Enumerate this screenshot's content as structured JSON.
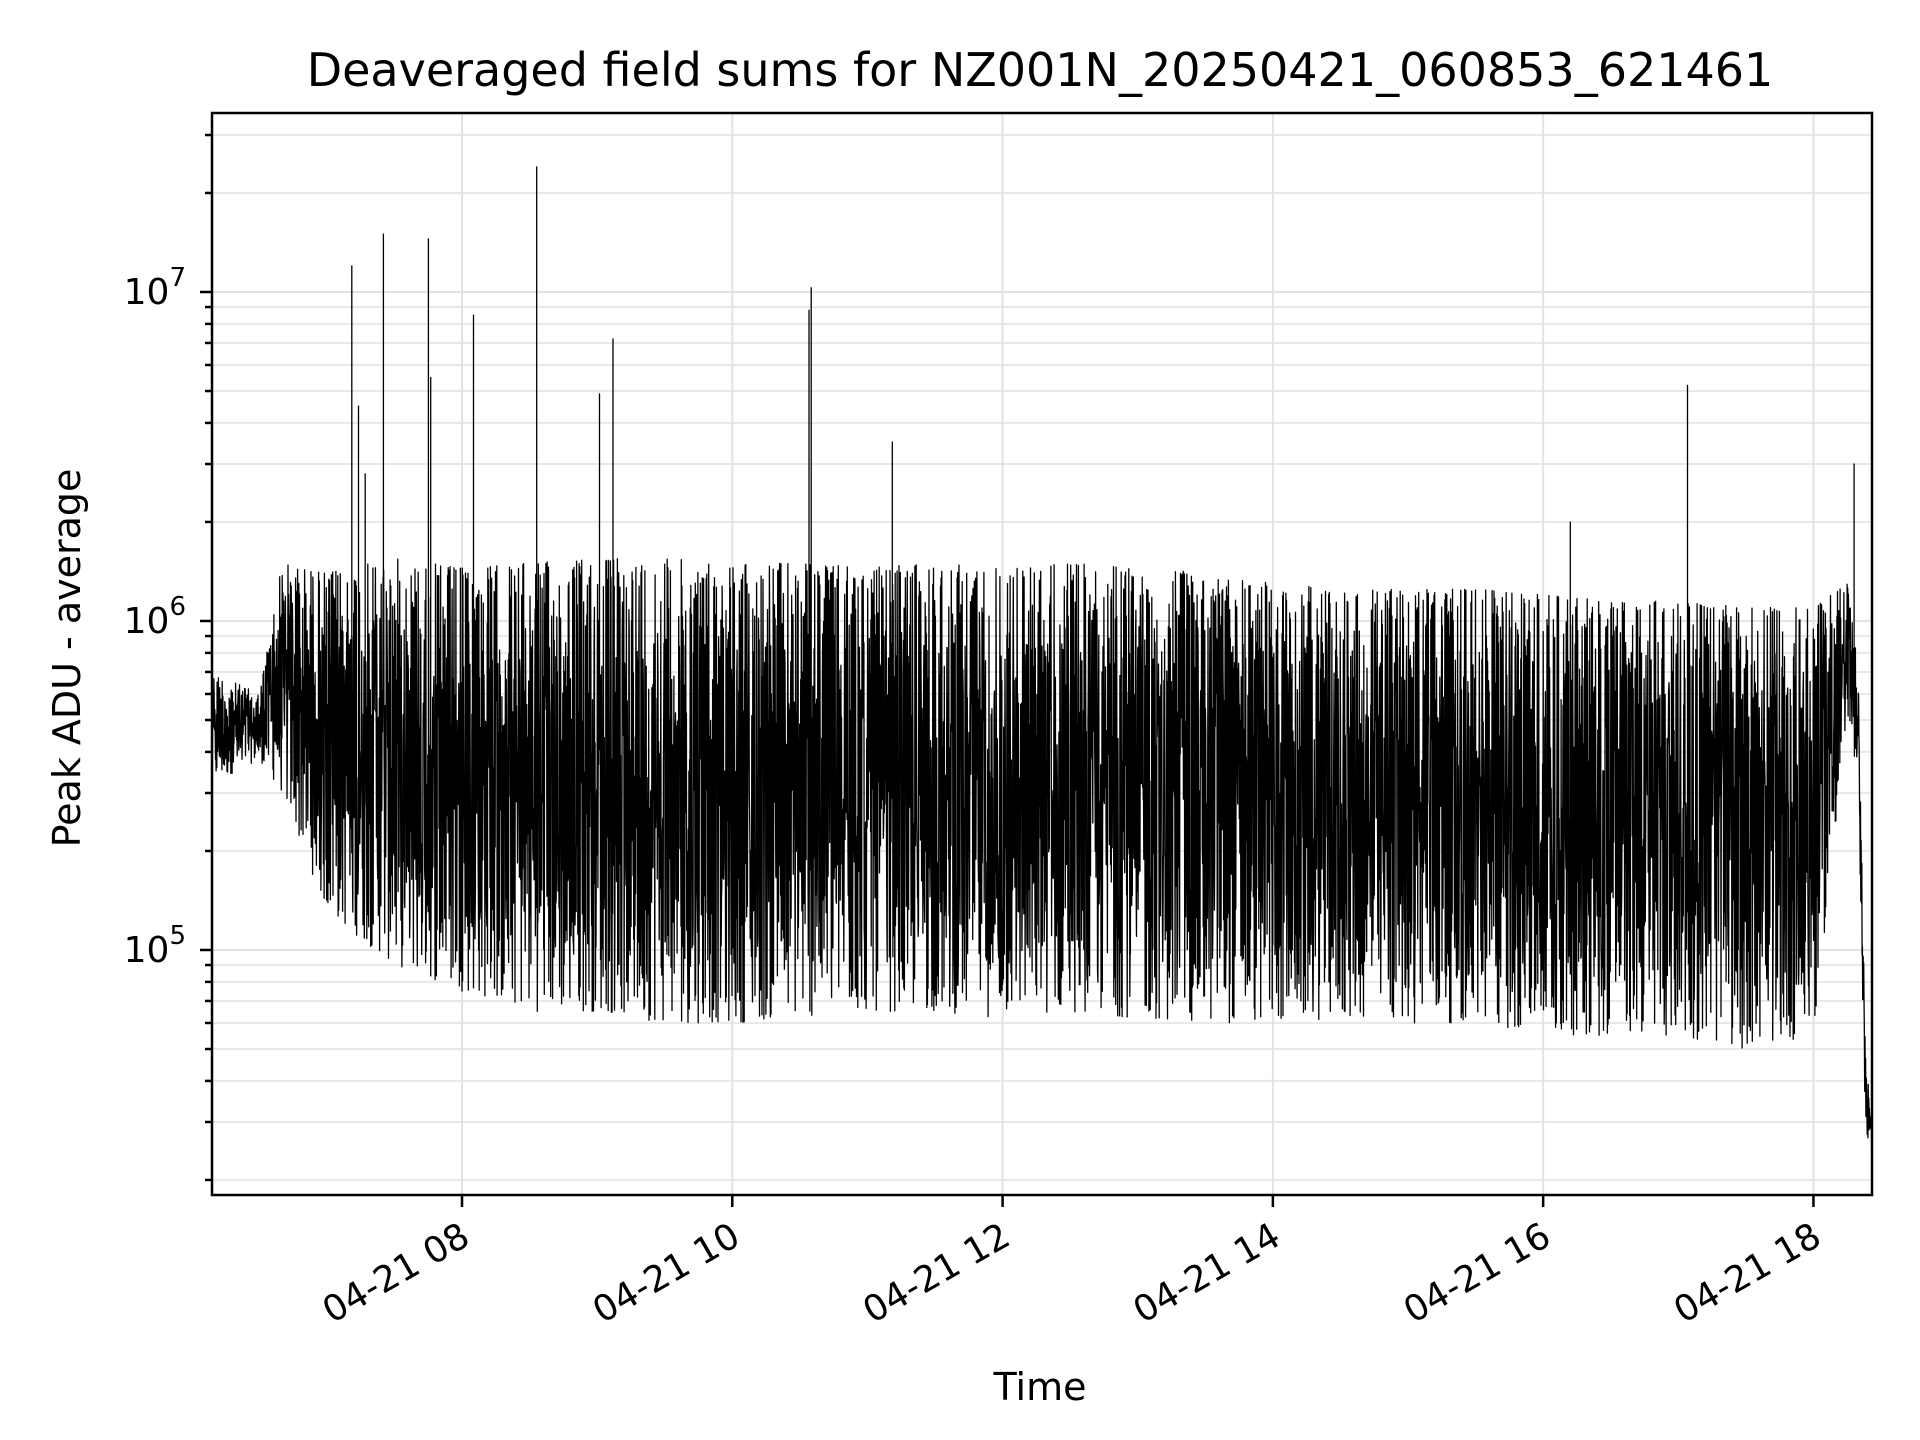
{
  "chart_data": {
    "type": "line",
    "title": "Deaveraged field sums for NZ001N_20250421_060853_621461",
    "xlabel": "Time",
    "ylabel": "Peak ADU - average",
    "y_scale": "log",
    "grid": true,
    "xlim": [
      "04-21 06:09",
      "04-21 18:26"
    ],
    "ylim": [
      18000,
      35000000
    ],
    "x_ticks": [
      "04-21 08",
      "04-21 10",
      "04-21 12",
      "04-21 14",
      "04-21 16",
      "04-21 18"
    ],
    "x_tick_hours": [
      8,
      10,
      12,
      14,
      16,
      18
    ],
    "y_ticks": [
      {
        "base": "10",
        "exp": "5",
        "value": 100000
      },
      {
        "base": "10",
        "exp": "6",
        "value": 1000000
      },
      {
        "base": "10",
        "exp": "7",
        "value": 10000000
      }
    ],
    "series": [
      {
        "color": "#000000",
        "envelope": [
          {
            "t": "06:09",
            "hi": 700000,
            "lo": 320000
          },
          {
            "t": "06:30",
            "hi": 600000,
            "lo": 380000
          },
          {
            "t": "06:40",
            "hi": 1500000,
            "lo": 300000
          },
          {
            "t": "07:00",
            "hi": 1400000,
            "lo": 130000
          },
          {
            "t": "07:30",
            "hi": 1550000,
            "lo": 90000
          },
          {
            "t": "08:00",
            "hi": 1450000,
            "lo": 75000
          },
          {
            "t": "08:30",
            "hi": 1500000,
            "lo": 65000
          },
          {
            "t": "09:00",
            "hi": 1550000,
            "lo": 65000
          },
          {
            "t": "09:30",
            "hi": 1550000,
            "lo": 60000
          },
          {
            "t": "10:00",
            "hi": 1500000,
            "lo": 60000
          },
          {
            "t": "10:30",
            "hi": 1500000,
            "lo": 62000
          },
          {
            "t": "11:00",
            "hi": 1450000,
            "lo": 65000
          },
          {
            "t": "11:30",
            "hi": 1500000,
            "lo": 65000
          },
          {
            "t": "12:00",
            "hi": 1450000,
            "lo": 62000
          },
          {
            "t": "12:30",
            "hi": 1500000,
            "lo": 65000
          },
          {
            "t": "13:00",
            "hi": 1450000,
            "lo": 62000
          },
          {
            "t": "13:30",
            "hi": 1400000,
            "lo": 60000
          },
          {
            "t": "14:00",
            "hi": 1300000,
            "lo": 60000
          },
          {
            "t": "14:30",
            "hi": 1250000,
            "lo": 62000
          },
          {
            "t": "15:00",
            "hi": 1250000,
            "lo": 60000
          },
          {
            "t": "15:30",
            "hi": 1250000,
            "lo": 60000
          },
          {
            "t": "16:00",
            "hi": 1200000,
            "lo": 55000
          },
          {
            "t": "16:30",
            "hi": 1150000,
            "lo": 55000
          },
          {
            "t": "17:00",
            "hi": 1150000,
            "lo": 55000
          },
          {
            "t": "17:30",
            "hi": 1100000,
            "lo": 50000
          },
          {
            "t": "18:00",
            "hi": 1100000,
            "lo": 55000
          },
          {
            "t": "18:15",
            "hi": 1300000,
            "lo": 500000
          },
          {
            "t": "18:20",
            "hi": 700000,
            "lo": 300000
          },
          {
            "t": "18:23",
            "hi": 50000,
            "lo": 30000
          },
          {
            "t": "18:26",
            "hi": 30000,
            "lo": 22000
          }
        ],
        "spikes": [
          {
            "t": "07:11",
            "value": 12000000
          },
          {
            "t": "07:14",
            "value": 4500000
          },
          {
            "t": "07:17",
            "value": 2800000
          },
          {
            "t": "07:25",
            "value": 15000000
          },
          {
            "t": "07:45",
            "value": 3500000
          },
          {
            "t": "07:45",
            "value": 14500000
          },
          {
            "t": "07:46",
            "value": 5500000
          },
          {
            "t": "08:05",
            "value": 8500000
          },
          {
            "t": "08:33",
            "value": 24000000
          },
          {
            "t": "09:01",
            "value": 4900000
          },
          {
            "t": "09:07",
            "value": 7200000
          },
          {
            "t": "10:35",
            "value": 10300000
          },
          {
            "t": "10:34",
            "value": 8800000
          },
          {
            "t": "11:11",
            "value": 3500000
          },
          {
            "t": "16:12",
            "value": 2000000
          },
          {
            "t": "17:04",
            "value": 5200000
          },
          {
            "t": "18:18",
            "value": 3000000
          }
        ]
      }
    ]
  }
}
